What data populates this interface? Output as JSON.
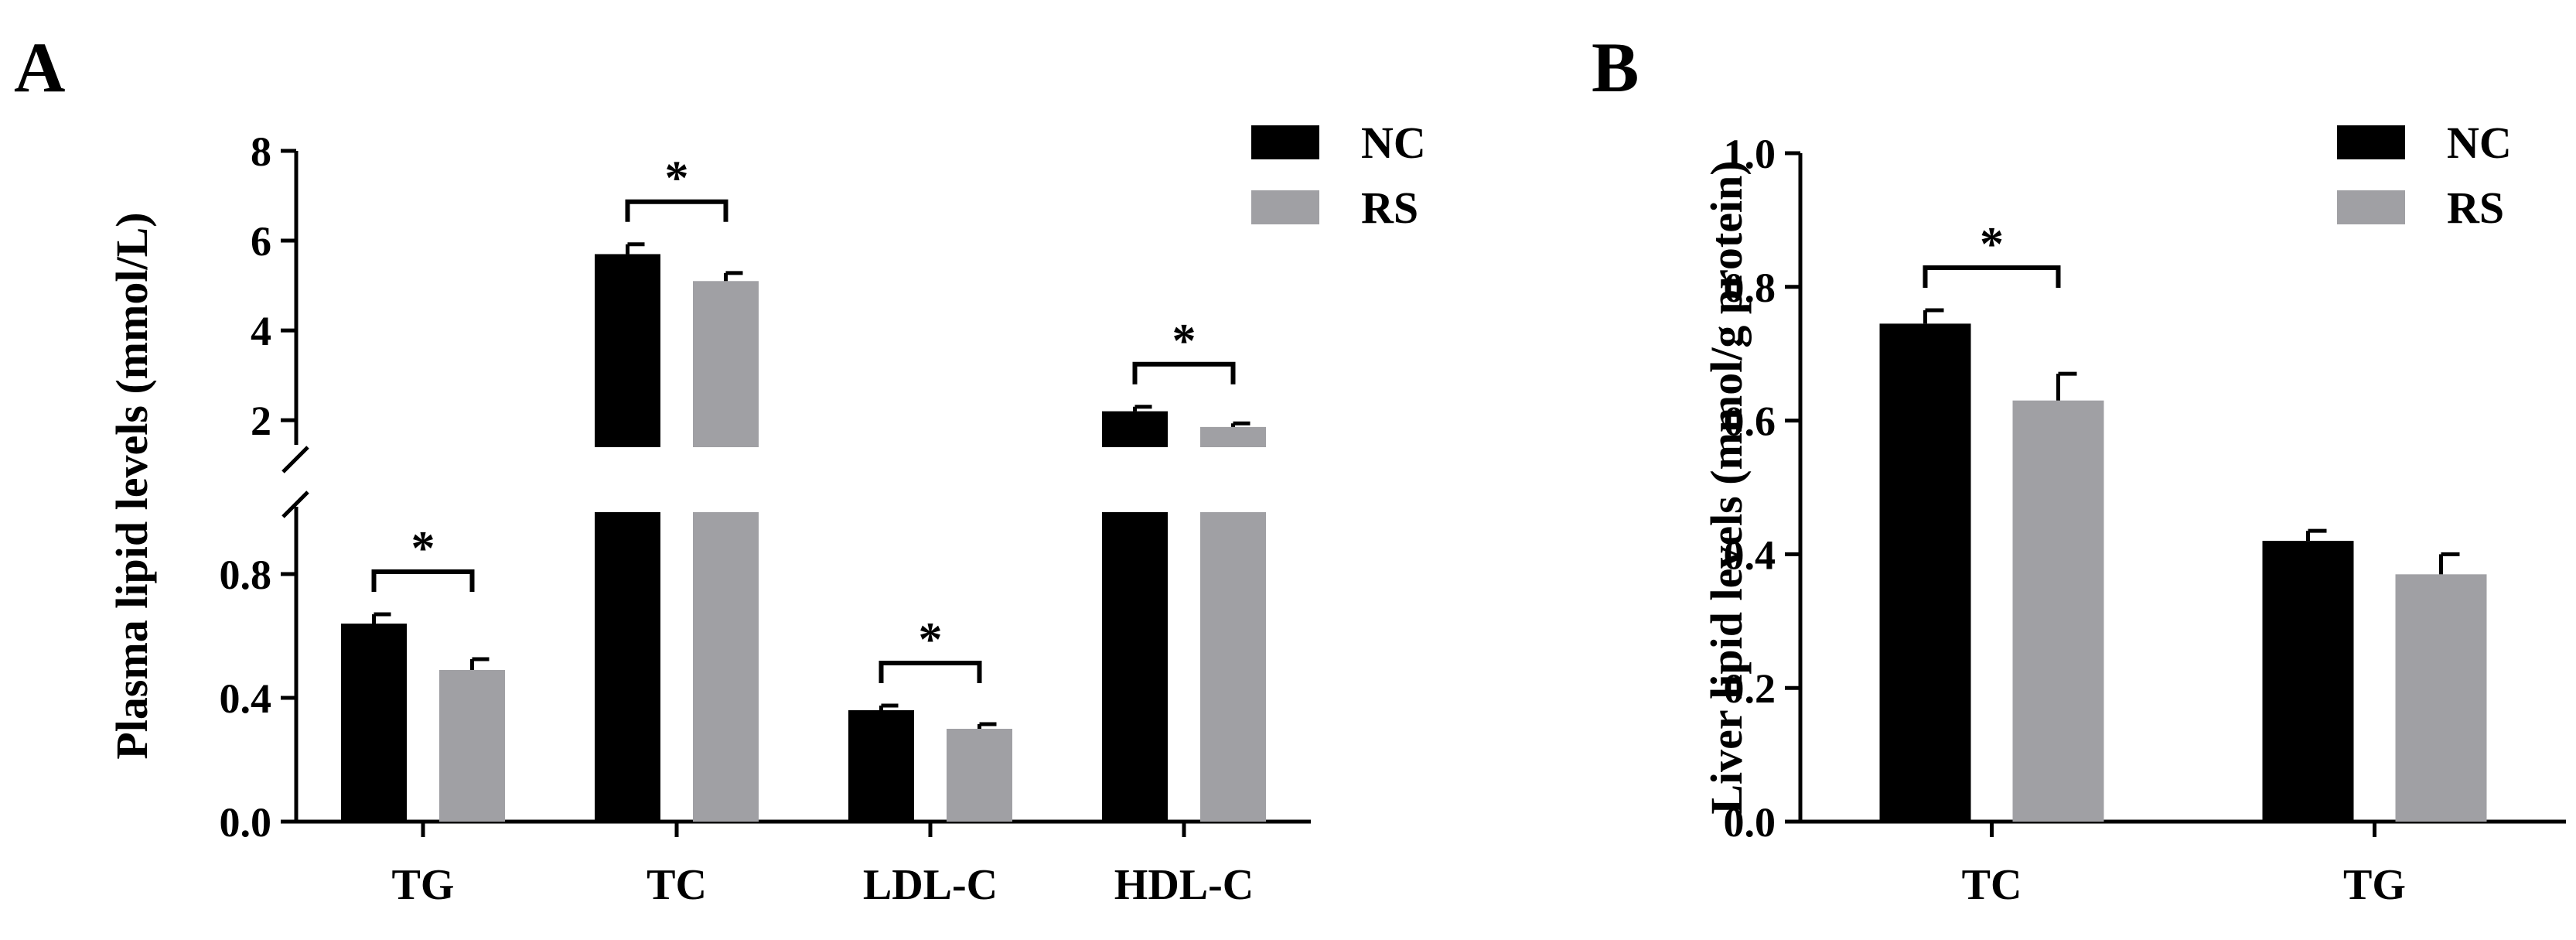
{
  "colors": {
    "NC": "#000000",
    "RS": "#a0a0a4",
    "axis": "#000000"
  },
  "legend": [
    {
      "key": "NC",
      "label": "NC"
    },
    {
      "key": "RS",
      "label": "RS"
    }
  ],
  "chart_data": [
    {
      "panel": "A",
      "type": "bar",
      "ylabel": "Plasma lipid levels (mmol/L)",
      "y_axis_break": true,
      "ylim_lower": [
        0,
        1.0
      ],
      "ylim_upper": [
        1.4,
        8
      ],
      "yticks_lower": [
        "0.0",
        "0.4",
        "0.8"
      ],
      "yticks_upper": [
        "2",
        "4",
        "6",
        "8"
      ],
      "categories": [
        "TG",
        "TC",
        "LDL-C",
        "HDL-C"
      ],
      "series": [
        {
          "name": "NC",
          "values": [
            0.64,
            5.7,
            0.36,
            2.2
          ],
          "errors": [
            0.03,
            0.22,
            0.015,
            0.1
          ]
        },
        {
          "name": "RS",
          "values": [
            0.49,
            5.1,
            0.3,
            1.85
          ],
          "errors": [
            0.035,
            0.18,
            0.015,
            0.08
          ]
        }
      ],
      "significance": [
        {
          "category": "TG",
          "label": "*"
        },
        {
          "category": "TC",
          "label": "*"
        },
        {
          "category": "LDL-C",
          "label": "*"
        },
        {
          "category": "HDL-C",
          "label": "*"
        }
      ],
      "legend_position": "top-right"
    },
    {
      "panel": "B",
      "type": "bar",
      "ylabel": "Liver lipid levels (mmol/g protein)",
      "ylim": [
        0,
        1.0
      ],
      "yticks": [
        "0.0",
        "0.2",
        "0.4",
        "0.6",
        "0.8",
        "1.0"
      ],
      "categories": [
        "TC",
        "TG"
      ],
      "series": [
        {
          "name": "NC",
          "values": [
            0.745,
            0.42
          ],
          "errors": [
            0.02,
            0.015
          ]
        },
        {
          "name": "RS",
          "values": [
            0.63,
            0.37
          ],
          "errors": [
            0.04,
            0.03
          ]
        }
      ],
      "significance": [
        {
          "category": "TC",
          "label": "*"
        }
      ],
      "legend_position": "top-right"
    }
  ]
}
